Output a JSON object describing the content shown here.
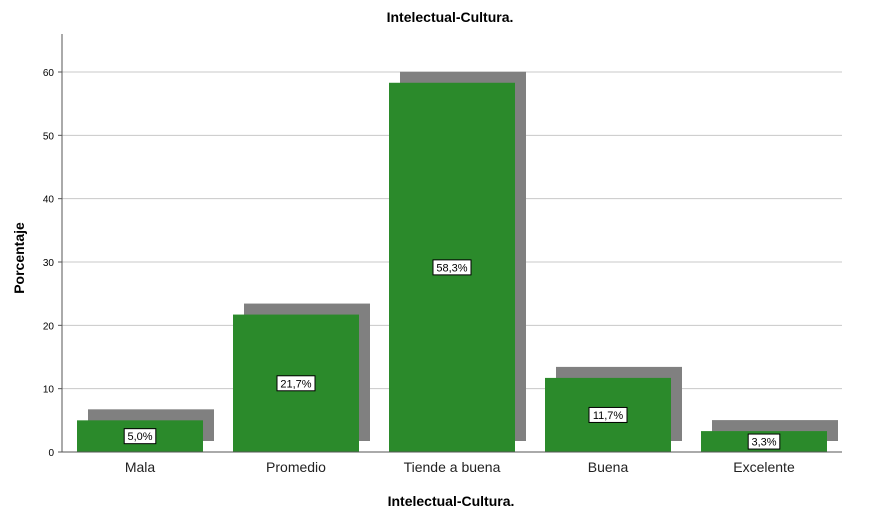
{
  "chart_data": {
    "type": "bar",
    "title": "Intelectual-Cultura.",
    "xlabel": "Intelectual-Cultura.",
    "ylabel": "Porcentaje",
    "categories": [
      "Mala",
      "Promedio",
      "Tiende a buena",
      "Buena",
      "Excelente"
    ],
    "values": [
      5.0,
      21.7,
      58.3,
      11.7,
      3.3
    ],
    "data_labels": [
      "5,0%",
      "21,7%",
      "58,3%",
      "11,7%",
      "3,3%"
    ],
    "ylim": [
      0,
      66
    ],
    "yticks": [
      0,
      10,
      20,
      30,
      40,
      50,
      60
    ],
    "grid": true,
    "bar_color": "#2b8a2b",
    "shadow_color": "#808080"
  }
}
